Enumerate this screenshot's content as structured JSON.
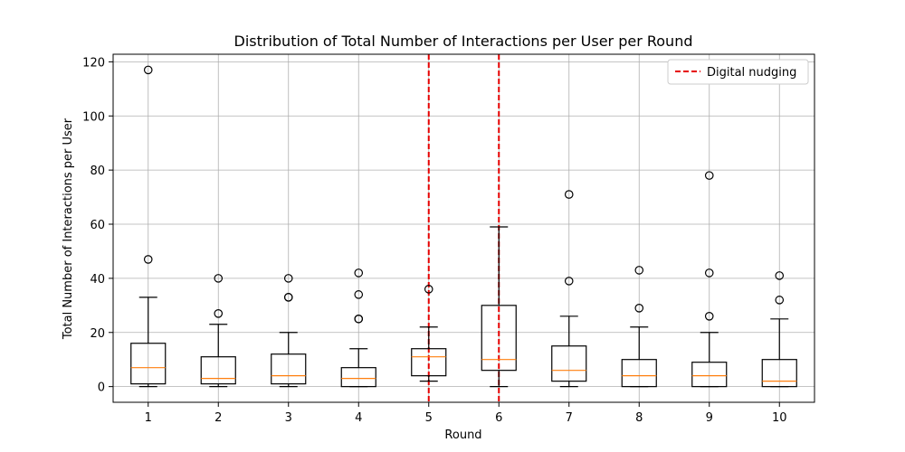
{
  "chart_data": {
    "type": "boxplot",
    "title": "Distribution of Total Number of Interactions per User per Round",
    "xlabel": "Round",
    "ylabel": "Total Number of Interactions per User",
    "categories": [
      "1",
      "2",
      "3",
      "4",
      "5",
      "6",
      "7",
      "8",
      "9",
      "10"
    ],
    "ylim": [
      -5.8,
      122.8
    ],
    "yticks": [
      0,
      20,
      40,
      60,
      80,
      100,
      120
    ],
    "grid": true,
    "legend_placement": "top-right",
    "boxes": [
      {
        "whislo": 0,
        "q1": 1,
        "med": 7,
        "q3": 16,
        "whishi": 33,
        "fliers": [
          47,
          117
        ]
      },
      {
        "whislo": 0,
        "q1": 1,
        "med": 3,
        "q3": 11,
        "whishi": 23,
        "fliers": [
          27,
          40
        ]
      },
      {
        "whislo": 0,
        "q1": 1,
        "med": 4,
        "q3": 12,
        "whishi": 20,
        "fliers": [
          33,
          33,
          40
        ]
      },
      {
        "whislo": 0,
        "q1": 0,
        "med": 3,
        "q3": 7,
        "whishi": 14,
        "fliers": [
          25,
          25,
          34,
          42
        ]
      },
      {
        "whislo": 2,
        "q1": 4,
        "med": 11,
        "q3": 14,
        "whishi": 22,
        "fliers": [
          36
        ]
      },
      {
        "whislo": 0,
        "q1": 6,
        "med": 10,
        "q3": 30,
        "whishi": 59,
        "fliers": []
      },
      {
        "whislo": 0,
        "q1": 2,
        "med": 6,
        "q3": 15,
        "whishi": 26,
        "fliers": [
          39,
          71
        ]
      },
      {
        "whislo": 0,
        "q1": 0,
        "med": 4,
        "q3": 10,
        "whishi": 22,
        "fliers": [
          29,
          43
        ]
      },
      {
        "whislo": 0,
        "q1": 0,
        "med": 4,
        "q3": 9,
        "whishi": 20,
        "fliers": [
          26,
          42,
          78
        ]
      },
      {
        "whislo": 0,
        "q1": 0,
        "med": 2,
        "q3": 10,
        "whishi": 25,
        "fliers": [
          32,
          41
        ]
      }
    ],
    "reference_lines": {
      "label": "Digital nudging",
      "x": [
        5,
        6
      ],
      "color": "#e60000",
      "style": "dashed"
    },
    "colors": {
      "box": "#000000",
      "median": "#ff7f0e",
      "grid": "#b0b0b0"
    }
  }
}
